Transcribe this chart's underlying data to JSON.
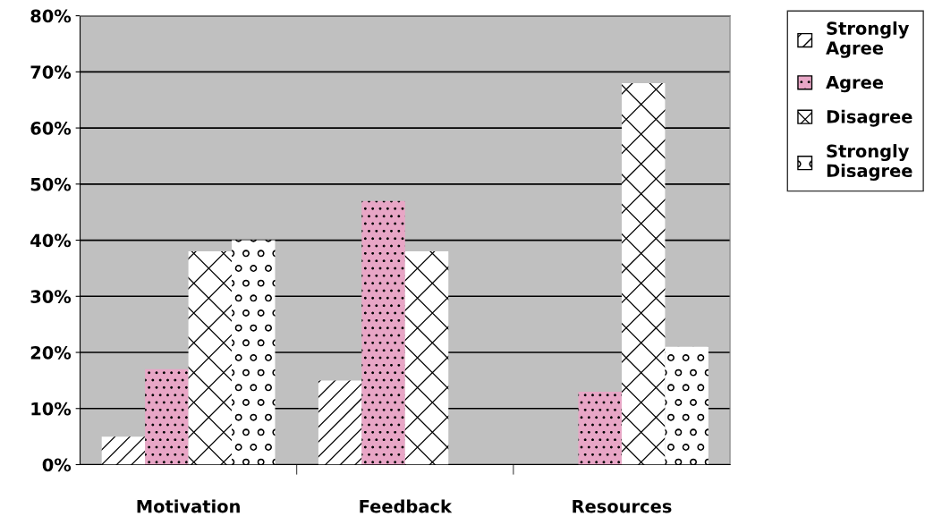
{
  "chart_data": {
    "type": "bar",
    "categories": [
      "Motivation",
      "Feedback",
      "Resources"
    ],
    "series": [
      {
        "name": "Strongly Agree",
        "color": "#ffffff",
        "values": [
          5,
          15,
          0
        ]
      },
      {
        "name": "Agree",
        "color": "#e8a6c6",
        "values": [
          17,
          47,
          13
        ]
      },
      {
        "name": "Disagree",
        "color": "#ffffff",
        "values": [
          38,
          38,
          68
        ]
      },
      {
        "name": "Strongly Disagree",
        "color": "#ffffff",
        "values": [
          40,
          0,
          21
        ]
      }
    ],
    "ylim": [
      0,
      80
    ],
    "yticks": [
      {
        "value": 0,
        "label": "0%"
      },
      {
        "value": 10,
        "label": "10%"
      },
      {
        "value": 20,
        "label": "20%"
      },
      {
        "value": 30,
        "label": "30%"
      },
      {
        "value": 40,
        "label": "40%"
      },
      {
        "value": 50,
        "label": "50%"
      },
      {
        "value": 60,
        "label": "60%"
      },
      {
        "value": 70,
        "label": "70%"
      },
      {
        "value": 80,
        "label": "80%"
      }
    ],
    "grid": "y",
    "legend": "right"
  }
}
